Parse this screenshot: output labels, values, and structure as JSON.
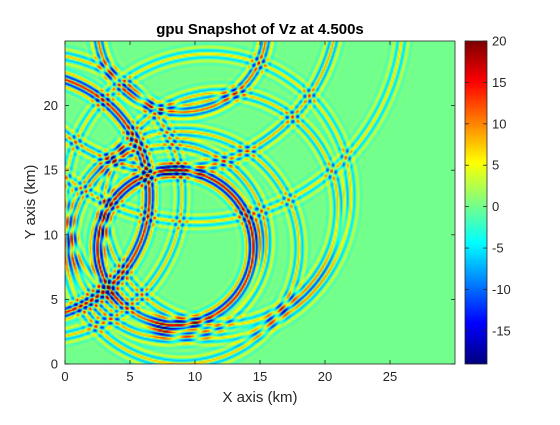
{
  "chart_data": {
    "type": "heatmap",
    "title": "gpu Snapshot of Vz at  4.500s",
    "xlabel": "X axis (km)",
    "ylabel": "Y axis (km)",
    "xlim": [
      0,
      30
    ],
    "ylim": [
      0,
      25
    ],
    "x_ticks": [
      "0",
      "5",
      "10",
      "15",
      "20",
      "25"
    ],
    "y_ticks": [
      "0",
      "5",
      "10",
      "15",
      "20"
    ],
    "colorbar": {
      "range": [
        -19,
        20
      ],
      "ticks": [
        "20",
        "15",
        "10",
        "5",
        "0",
        "-5",
        "-10",
        "-15"
      ],
      "colormap": "jet"
    },
    "background_value": 0,
    "wavefronts": [
      {
        "cx": 8.5,
        "cy": 9.0,
        "radius": 6.0,
        "amplitude": 18
      },
      {
        "cx": 8.0,
        "cy": 9.5,
        "radius": 7.5,
        "amplitude": 9
      },
      {
        "cx": 9.0,
        "cy": 9.0,
        "radius": 9.0,
        "amplitude": 8
      },
      {
        "cx": -3.0,
        "cy": 13.0,
        "radius": 9.5,
        "amplitude": 16
      },
      {
        "cx": -2.0,
        "cy": 13.0,
        "radius": 11.0,
        "amplitude": 8
      },
      {
        "cx": 8.0,
        "cy": 28.0,
        "radius": 13.0,
        "amplitude": 9
      },
      {
        "cx": 10.0,
        "cy": 27.0,
        "radius": 16.0,
        "amplitude": 7
      },
      {
        "cx": 9.0,
        "cy": 26.0,
        "radius": 6.5,
        "amplitude": 12
      },
      {
        "cx": 12.0,
        "cy": 12.0,
        "radius": 9.0,
        "amplitude": 8
      },
      {
        "cx": 11.0,
        "cy": 13.0,
        "radius": 11.0,
        "amplitude": 7
      }
    ]
  }
}
